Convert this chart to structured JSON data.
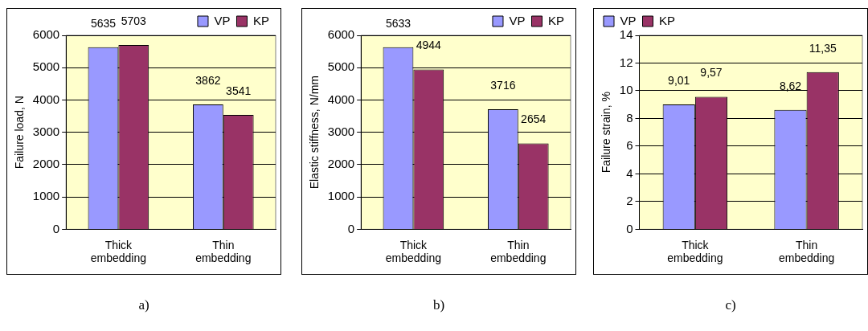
{
  "chart_data": [
    {
      "type": "bar",
      "ylabel": "Failure load, N",
      "categories": [
        "Thick embedding",
        "Thin embedding"
      ],
      "series": [
        {
          "name": "VP",
          "color": "#9999ff",
          "values": [
            5635,
            3862
          ]
        },
        {
          "name": "KP",
          "color": "#993366",
          "values": [
            5703,
            3541
          ]
        }
      ],
      "ylim": [
        0,
        6000
      ],
      "yticks": [
        0,
        1000,
        2000,
        3000,
        4000,
        5000,
        6000
      ],
      "grid": "y",
      "legend": "top right",
      "data_labels": true,
      "annotations": [
        "a)"
      ]
    },
    {
      "type": "bar",
      "ylabel": "Elastic stiffness, N/mm",
      "categories": [
        "Thick embedding",
        "Thin embedding"
      ],
      "series": [
        {
          "name": "VP",
          "color": "#9999ff",
          "values": [
            5633,
            3716
          ]
        },
        {
          "name": "KP",
          "color": "#993366",
          "values": [
            4944,
            2654
          ]
        }
      ],
      "ylim": [
        0,
        6000
      ],
      "yticks": [
        0,
        1000,
        2000,
        3000,
        4000,
        5000,
        6000
      ],
      "grid": "y",
      "legend": "top right",
      "data_labels": true,
      "annotations": [
        "b)"
      ]
    },
    {
      "type": "bar",
      "ylabel": "Failure strain, %",
      "categories": [
        "Thick embedding",
        "Thin embedding"
      ],
      "series": [
        {
          "name": "VP",
          "color": "#9999ff",
          "values": [
            9.01,
            8.62
          ],
          "value_labels": [
            "9,01",
            "8,62"
          ]
        },
        {
          "name": "KP",
          "color": "#993366",
          "values": [
            9.57,
            11.35
          ],
          "value_labels": [
            "9,57",
            "11,35"
          ]
        }
      ],
      "ylim": [
        0,
        14
      ],
      "yticks": [
        0,
        2,
        4,
        6,
        8,
        10,
        12,
        14
      ],
      "grid": "y",
      "legend": "top left",
      "annotations": [
        "c)"
      ]
    }
  ]
}
